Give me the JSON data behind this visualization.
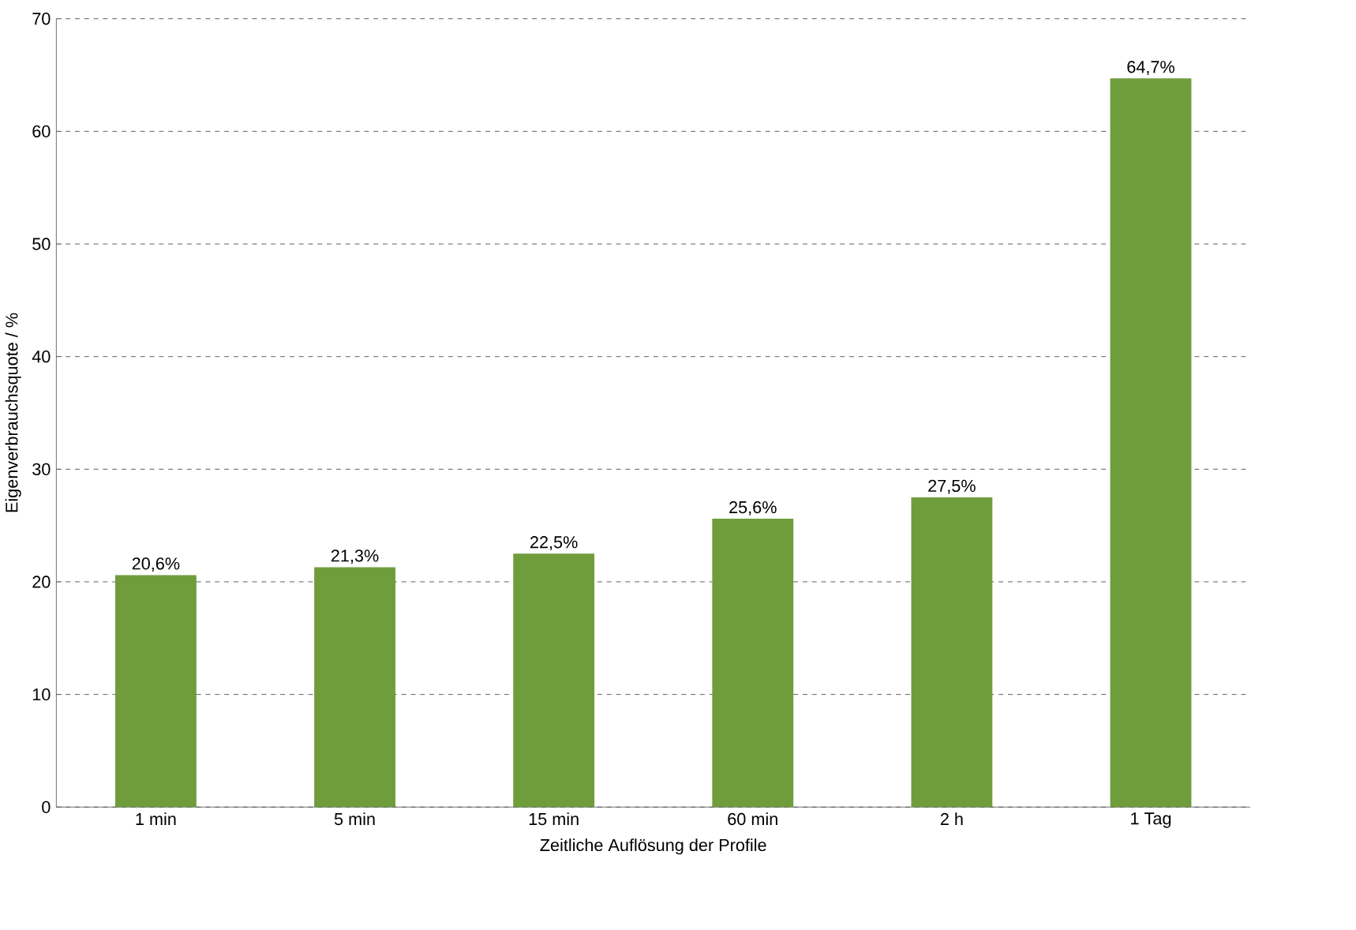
{
  "chart_data": {
    "type": "bar",
    "categories": [
      "1 min",
      "5 min",
      "15 min",
      "60 min",
      "2 h",
      "1 Tag"
    ],
    "values": [
      20.6,
      21.3,
      22.5,
      25.6,
      27.5,
      64.7
    ],
    "value_labels": [
      "20,6%",
      "21,3%",
      "22,5%",
      "25,6%",
      "27,5%",
      "64,7%"
    ],
    "color": "#6f9d3c",
    "xlabel": "Zeitliche Auflösung der Profile",
    "ylabel": "Eigenverbrauchsquote / %",
    "ylim": [
      0,
      70
    ],
    "yticks": [
      0,
      10,
      20,
      30,
      40,
      50,
      60,
      70
    ],
    "grid": "y"
  }
}
